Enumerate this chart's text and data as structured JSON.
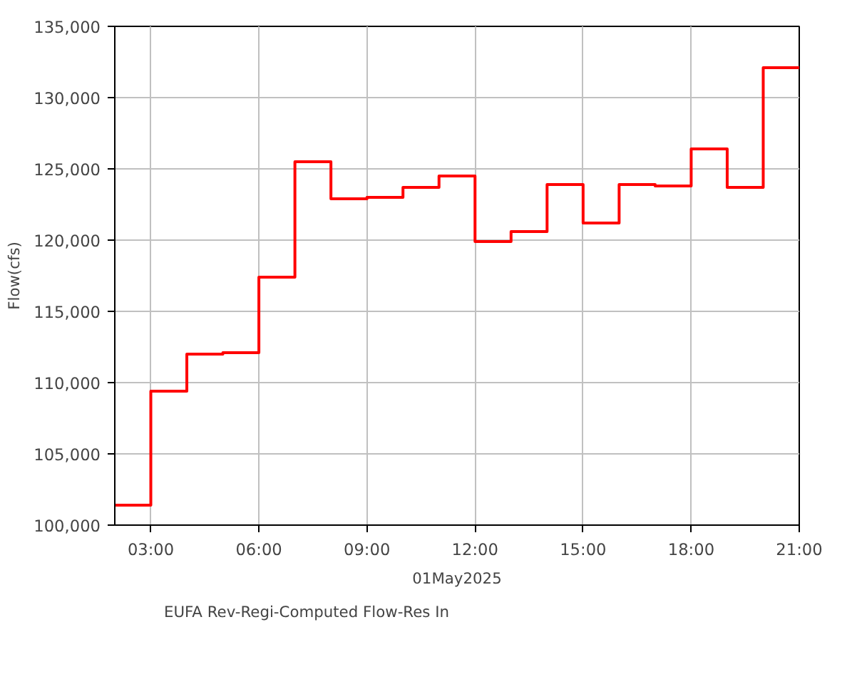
{
  "chart_data": {
    "type": "step",
    "xlabel": "01May2025",
    "ylabel": "Flow(cfs)",
    "x": [
      2,
      3,
      4,
      5,
      6,
      7,
      8,
      9,
      10,
      11,
      12,
      13,
      14,
      15,
      16,
      17,
      18,
      19,
      20,
      21
    ],
    "series": [
      {
        "name": "EUFA Rev-Regi-Computed Flow-Res In",
        "color": "#ff0000",
        "values": [
          101400,
          101400,
          109400,
          112000,
          112100,
          117400,
          125500,
          122900,
          123000,
          123700,
          124500,
          119900,
          120600,
          123900,
          121200,
          123900,
          123800,
          126400,
          123700,
          132100
        ]
      }
    ],
    "xlim": [
      2,
      21
    ],
    "xticks": [
      {
        "value": 3,
        "label": "03:00"
      },
      {
        "value": 6,
        "label": "06:00"
      },
      {
        "value": 9,
        "label": "09:00"
      },
      {
        "value": 12,
        "label": "12:00"
      },
      {
        "value": 15,
        "label": "15:00"
      },
      {
        "value": 18,
        "label": "18:00"
      },
      {
        "value": 21,
        "label": "21:00"
      }
    ],
    "ylim": [
      100000,
      135000
    ],
    "yticks": [
      {
        "value": 100000,
        "label": "100,000"
      },
      {
        "value": 105000,
        "label": "105,000"
      },
      {
        "value": 110000,
        "label": "110,000"
      },
      {
        "value": 115000,
        "label": "115,000"
      },
      {
        "value": 120000,
        "label": "120,000"
      },
      {
        "value": 125000,
        "label": "125,000"
      },
      {
        "value": 130000,
        "label": "130,000"
      },
      {
        "value": 135000,
        "label": "135,000"
      }
    ],
    "grid": true,
    "legend": "bottom left",
    "line_style": "solid",
    "marker": "none"
  }
}
